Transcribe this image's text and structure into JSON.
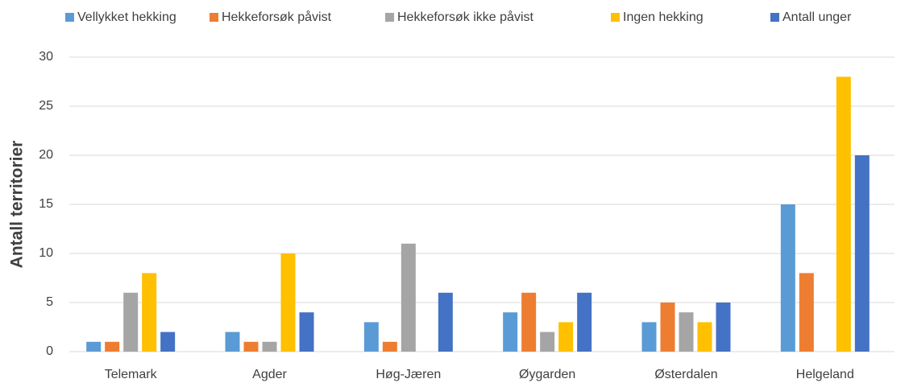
{
  "chart_data": {
    "type": "bar",
    "y_label": "Antall territorier",
    "categories": [
      "Telemark",
      "Agder",
      "Høg-Jæren",
      "Øygarden",
      "Østerdalen",
      "Helgeland"
    ],
    "series": [
      {
        "name": "Vellykket hekking",
        "color": "#5b9bd5",
        "values": [
          1,
          2,
          3,
          4,
          3,
          15
        ]
      },
      {
        "name": "Hekkeforsøk påvist",
        "color": "#ed7d31",
        "values": [
          1,
          1,
          1,
          6,
          5,
          8
        ]
      },
      {
        "name": "Hekkeforsøk ikke påvist",
        "color": "#a5a5a5",
        "values": [
          6,
          1,
          11,
          2,
          4,
          0
        ]
      },
      {
        "name": "Ingen hekking",
        "color": "#ffc000",
        "values": [
          8,
          10,
          0,
          3,
          3,
          28
        ]
      },
      {
        "name": "Antall unger",
        "color": "#4472c4",
        "values": [
          2,
          4,
          6,
          6,
          5,
          20
        ]
      }
    ],
    "ylim": [
      0,
      30
    ],
    "yticks": [
      0,
      5,
      10,
      15,
      20,
      25,
      30
    ],
    "grid": true,
    "legend": "top"
  }
}
